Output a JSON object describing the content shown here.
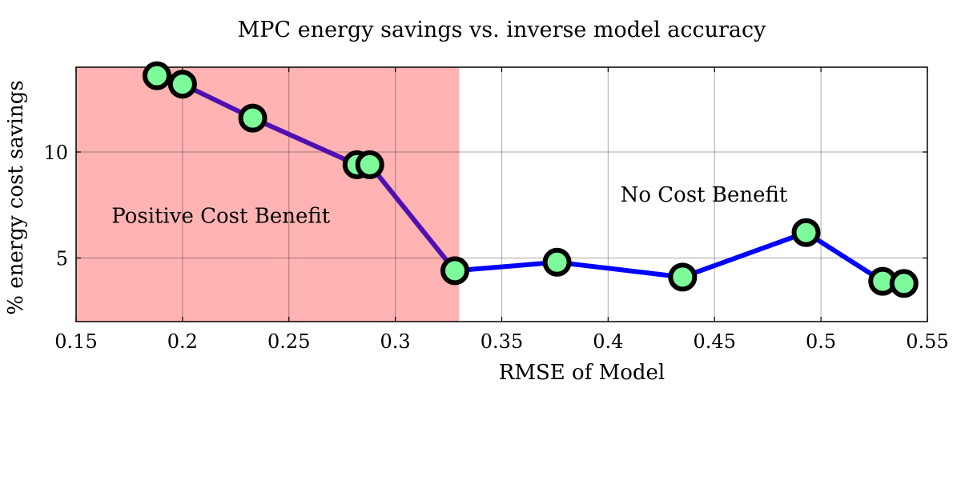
{
  "chart_data": {
    "type": "line",
    "title": "MPC energy savings vs. inverse model accuracy",
    "xlabel": "RMSE of Model",
    "ylabel": "% energy cost savings",
    "xlim": [
      0.15,
      0.55
    ],
    "ylim": [
      2,
      14
    ],
    "xticks": [
      0.15,
      0.2,
      0.25,
      0.3,
      0.35,
      0.4,
      0.45,
      0.5,
      0.55
    ],
    "xtick_labels": [
      "0.15",
      "0.2",
      "0.25",
      "0.3",
      "0.35",
      "0.4",
      "0.45",
      "0.5",
      "0.55"
    ],
    "yticks": [
      5,
      10
    ],
    "ytick_labels": [
      "5",
      "10"
    ],
    "grid": true,
    "x": [
      0.188,
      0.2,
      0.233,
      0.282,
      0.288,
      0.328,
      0.376,
      0.435,
      0.493,
      0.529,
      0.539
    ],
    "y": [
      13.6,
      13.2,
      11.6,
      9.4,
      9.4,
      4.4,
      4.8,
      4.1,
      6.2,
      3.9,
      3.8
    ],
    "line_color_segment1": "#5010b0",
    "line_color_segment2": "#0000ff",
    "marker_fill": "#7dfa9a",
    "marker_edge": "#000000",
    "shaded_region": {
      "x_from": 0.15,
      "x_to": 0.33,
      "color": "#ffb3b3"
    },
    "annotations": [
      {
        "text": "Positive Cost Benefit",
        "x": 0.218,
        "y": 7.0
      },
      {
        "text": "No Cost Benefit",
        "x": 0.445,
        "y": 8.0
      }
    ]
  }
}
